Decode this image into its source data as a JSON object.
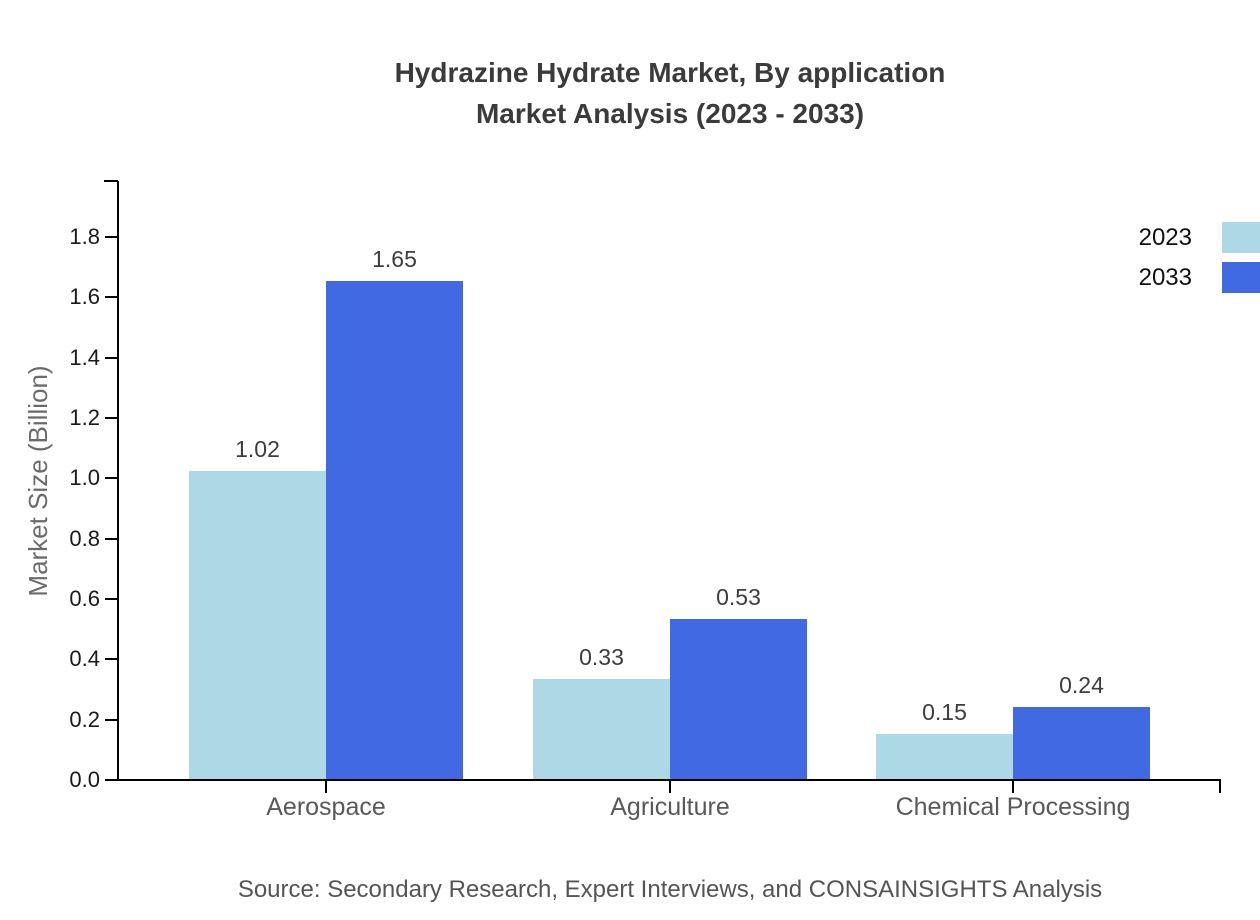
{
  "title": {
    "line1": "Hydrazine Hydrate Market, By application",
    "line2": "Market Analysis (2023 - 2033)"
  },
  "ylabel": "Market Size (Billion)",
  "source": "Source: Secondary Research, Expert Interviews, and CONSAINSIGHTS Analysis",
  "legend": [
    {
      "label": "2023",
      "color": "#ADD8E6"
    },
    {
      "label": "2033",
      "color": "#4169E1"
    }
  ],
  "colors": {
    "series_2023": "#ADD8E6",
    "series_2033": "#4169E1",
    "axis": "#000000",
    "title_text": "#3b3b3b",
    "tick_text": "#1a1a1a",
    "category_text": "#595959",
    "muted_text": "#6b6b6b"
  },
  "chart_data": {
    "type": "bar",
    "title": "Hydrazine Hydrate Market, By application Market Analysis (2023 - 2033)",
    "categories": [
      "Aerospace",
      "Agriculture",
      "Chemical Processing"
    ],
    "series": [
      {
        "name": "2023",
        "color": "#ADD8E6",
        "values": [
          1.02,
          0.33,
          0.15
        ]
      },
      {
        "name": "2033",
        "color": "#4169E1",
        "values": [
          1.65,
          0.53,
          0.24
        ]
      }
    ],
    "value_labels": [
      "1.02",
      "1.65",
      "0.33",
      "0.53",
      "0.15",
      "0.24"
    ],
    "xlabel": "",
    "ylabel": "Market Size (Billion)",
    "ylim": [
      0.0,
      1.8
    ],
    "yticks": [
      "0.0",
      "0.2",
      "0.4",
      "0.6",
      "0.8",
      "1.0",
      "1.2",
      "1.4",
      "1.6",
      "1.8"
    ],
    "grid": false,
    "legend_position": "upper right",
    "bar_value_labels_shown": true
  }
}
